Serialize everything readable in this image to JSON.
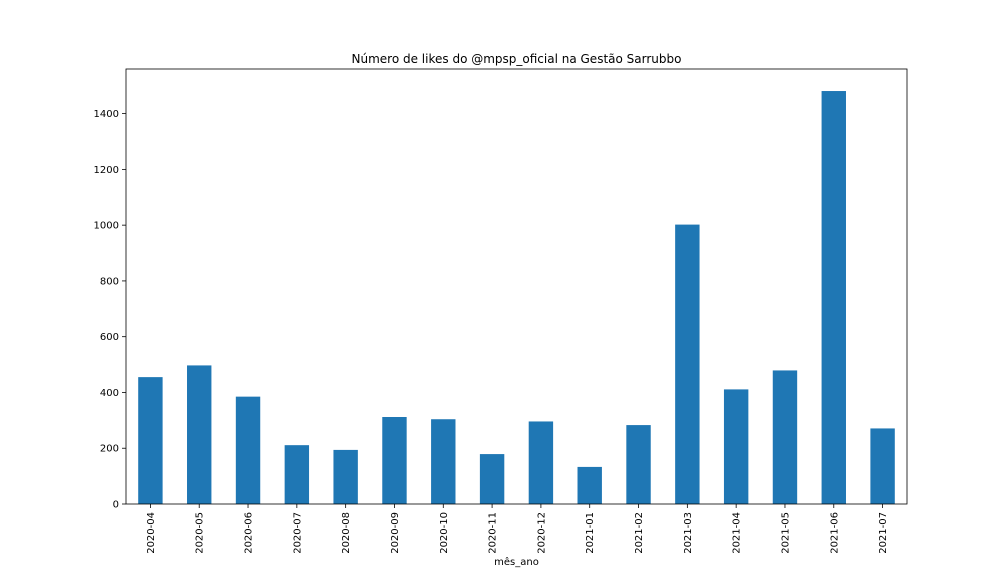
{
  "chart_data": {
    "type": "bar",
    "title": "Número de likes do @mpsp_oficial na Gestão Sarrubbo",
    "xlabel": "mês_ano",
    "ylabel": "",
    "categories": [
      "2020-04",
      "2020-05",
      "2020-06",
      "2020-07",
      "2020-08",
      "2020-09",
      "2020-10",
      "2020-11",
      "2020-12",
      "2021-01",
      "2021-02",
      "2021-03",
      "2021-04",
      "2021-05",
      "2021-06",
      "2021-07"
    ],
    "values": [
      455,
      497,
      385,
      211,
      194,
      312,
      304,
      179,
      296,
      133,
      283,
      1002,
      411,
      479,
      1481,
      271
    ],
    "ylim": [
      0,
      1560
    ],
    "yticks": [
      0,
      200,
      400,
      600,
      800,
      1000,
      1200,
      1400
    ],
    "bar_color": "#1f77b4",
    "grid": false,
    "legend": "none"
  }
}
